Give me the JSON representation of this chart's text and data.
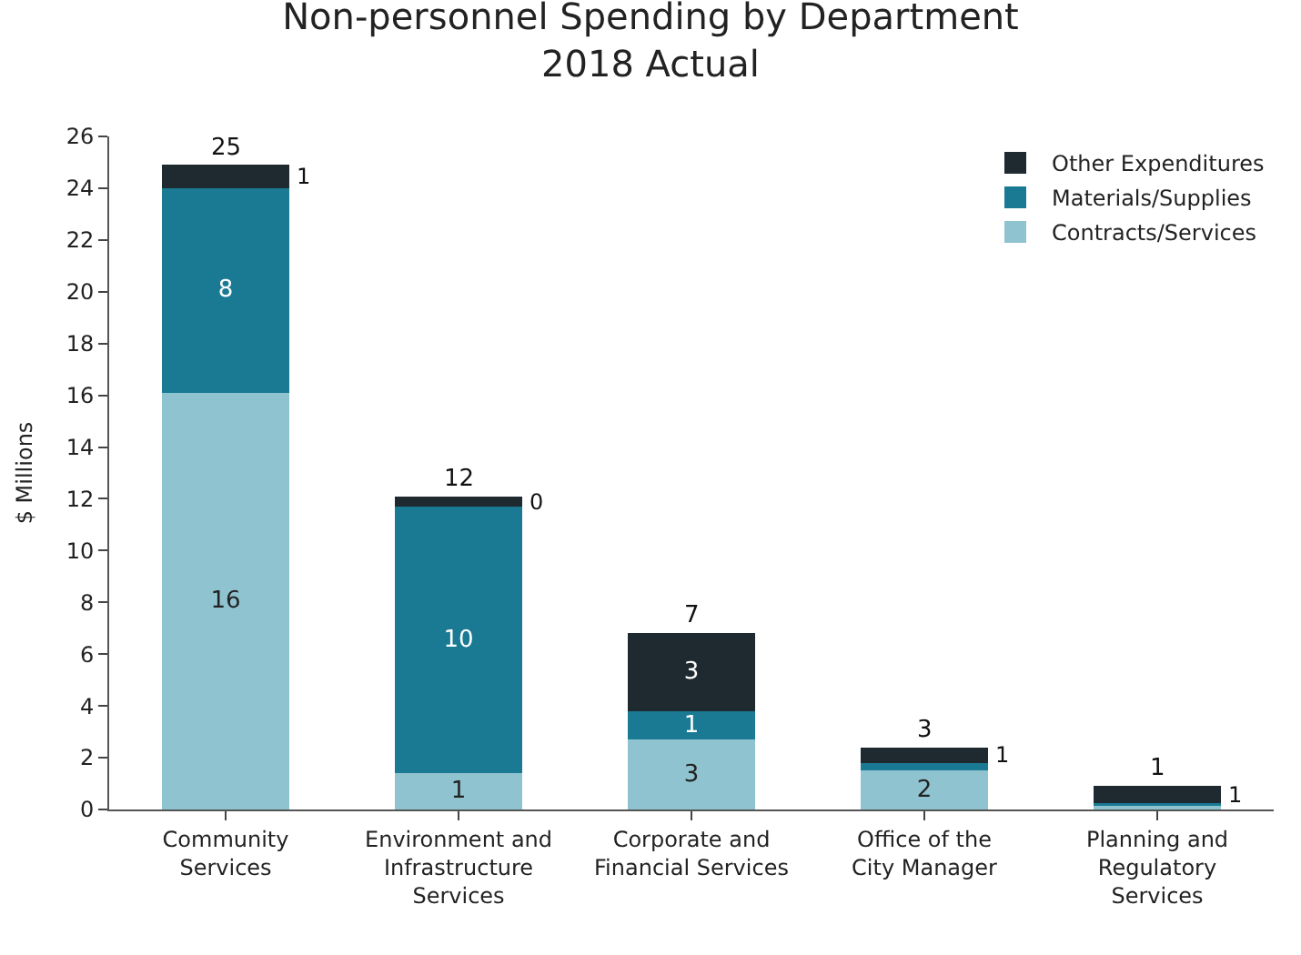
{
  "chart_data": {
    "type": "bar",
    "stacked": true,
    "title": "Non-personnel Spending by Department\n2018 Actual",
    "ylabel": "$ Millions",
    "categories": [
      "Community\nServices",
      "Environment and\nInfrastructure\nServices",
      "Corporate and\nFinancial Services",
      "Office of the\nCity Manager",
      "Planning and\nRegulatory\nServices"
    ],
    "series": [
      {
        "name": "Contracts/Services",
        "color": "#8fc3cf",
        "values": [
          16.1,
          1.4,
          2.7,
          1.5,
          0.15
        ],
        "value_labels": [
          "16",
          "1",
          "3",
          "2",
          null
        ]
      },
      {
        "name": "Materials/Supplies",
        "color": "#1a7a94",
        "values": [
          7.9,
          10.3,
          1.1,
          0.3,
          0.1
        ],
        "value_labels": [
          "8",
          "10",
          "1",
          null,
          null
        ]
      },
      {
        "name": "Other Expenditures",
        "color": "#1f2a30",
        "values": [
          0.9,
          0.4,
          3.0,
          0.6,
          0.65
        ],
        "value_labels": [
          "1",
          "0",
          "3",
          "1",
          "1"
        ]
      }
    ],
    "totals": [
      "25",
      "12",
      "7",
      "3",
      "1"
    ],
    "ylim": [
      0,
      26
    ],
    "yticks": [
      0,
      2,
      4,
      6,
      8,
      10,
      12,
      14,
      16,
      18,
      20,
      22,
      24,
      26
    ],
    "legend": "top right"
  }
}
